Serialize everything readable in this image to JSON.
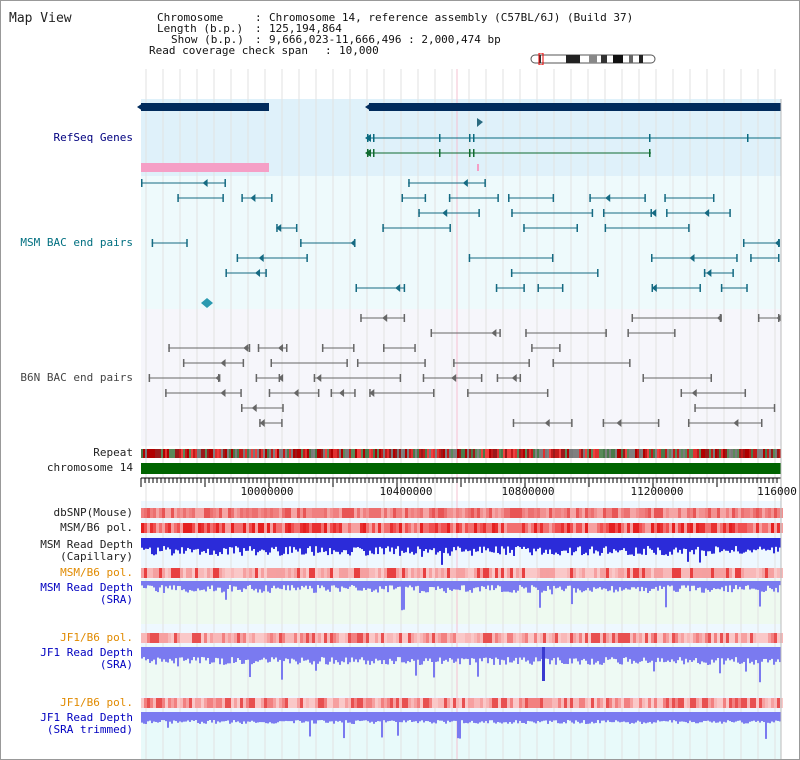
{
  "title": "Map View",
  "info": {
    "chromosome_label": "Chromosome",
    "chromosome_value": "Chromosome 14, reference assembly (C57BL/6J) (Build 37)",
    "length_label": "Length (b.p.)",
    "length_value": "125,194,864",
    "show_label": "Show (b.p.)",
    "show_value": "9,666,023-11,666,496 : 2,000,474 bp",
    "span_label": "Read coverage check span",
    "span_value": "10,000"
  },
  "tracks": {
    "refseq": "RefSeq Genes",
    "msm_bac": "MSM BAC end pairs",
    "b6n_bac": "B6N BAC end pairs",
    "repeat": "Repeat",
    "chromosome": "chromosome 14",
    "dbsnp": "dbSNP(Mouse)",
    "msm_b6_pol_1": "MSM/B6 pol.",
    "msm_read_depth_cap": "MSM Read Depth",
    "msm_read_depth_cap_sub": "(Capillary)",
    "msm_b6_pol_2": "MSM/B6 pol.",
    "msm_read_depth_sra": "MSM Read Depth",
    "msm_read_depth_sra_sub": "(SRA)",
    "jf1_b6_pol_1": "JF1/B6 pol.",
    "jf1_read_depth_sra": "JF1 Read Depth",
    "jf1_read_depth_sra_sub": "(SRA)",
    "jf1_b6_pol_2": "JF1/B6 pol.",
    "jf1_read_depth_trim": "JF1 Read Depth",
    "jf1_read_depth_trim_sub": "(SRA trimmed)"
  },
  "axis": {
    "ticks": [
      "10000000",
      "10400000",
      "10800000",
      "11200000",
      "116000"
    ]
  },
  "colors": {
    "navy_gene": "#002b5c",
    "refseq_bg": "#dff1fa",
    "msm_bg": "#eefafc",
    "b6n_bg": "#f6f6fb",
    "pink_bar": "#f59fc6",
    "chromosome_green": "#006400",
    "depth_blue": "#2b2bd9",
    "depth_lightblue": "#7a7af0",
    "pol_red": "#e83030",
    "pol_pink": "#f6a0a0"
  }
}
